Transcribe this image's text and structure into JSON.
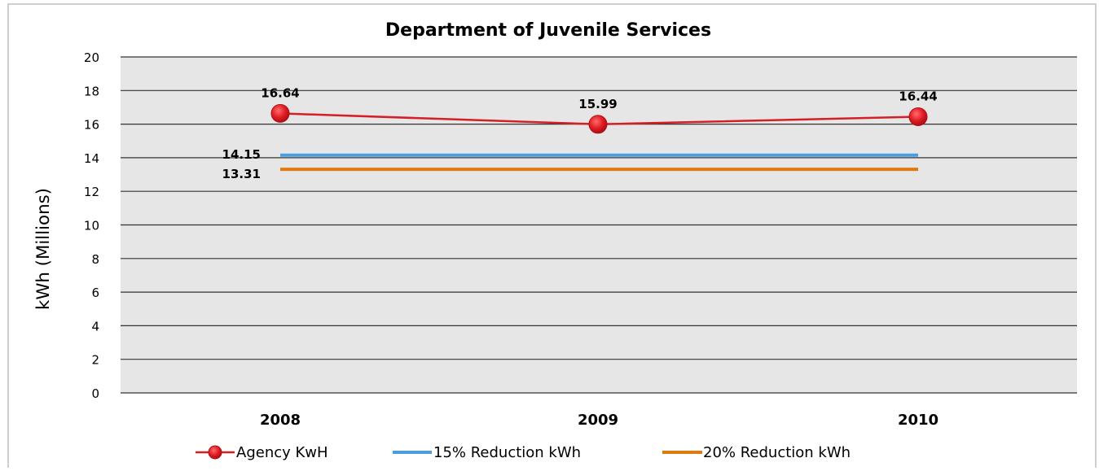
{
  "chart_data": {
    "type": "line",
    "title": "Department of Juvenile Services",
    "xlabel": "",
    "ylabel": "kWh (Millions)",
    "categories": [
      "2008",
      "2009",
      "2010"
    ],
    "ylim": [
      0,
      20
    ],
    "yticks": [
      0,
      2,
      4,
      6,
      8,
      10,
      12,
      14,
      16,
      18,
      20
    ],
    "grid": true,
    "legend_position": "bottom",
    "series": [
      {
        "name": "Agency KwH",
        "values": [
          16.64,
          15.99,
          16.44
        ],
        "labels": [
          "16.64",
          "15.99",
          "16.44"
        ],
        "color": "#d41f26",
        "marker": "circle"
      },
      {
        "name": "15% Reduction kWh",
        "values": [
          14.15,
          14.15,
          14.15
        ],
        "label": "14.15",
        "color": "#4a9ee0",
        "marker": "none"
      },
      {
        "name": "20% Reduction  kWh",
        "values": [
          13.31,
          13.31,
          13.31
        ],
        "label": "13.31",
        "color": "#e07a10",
        "marker": "none"
      }
    ]
  }
}
